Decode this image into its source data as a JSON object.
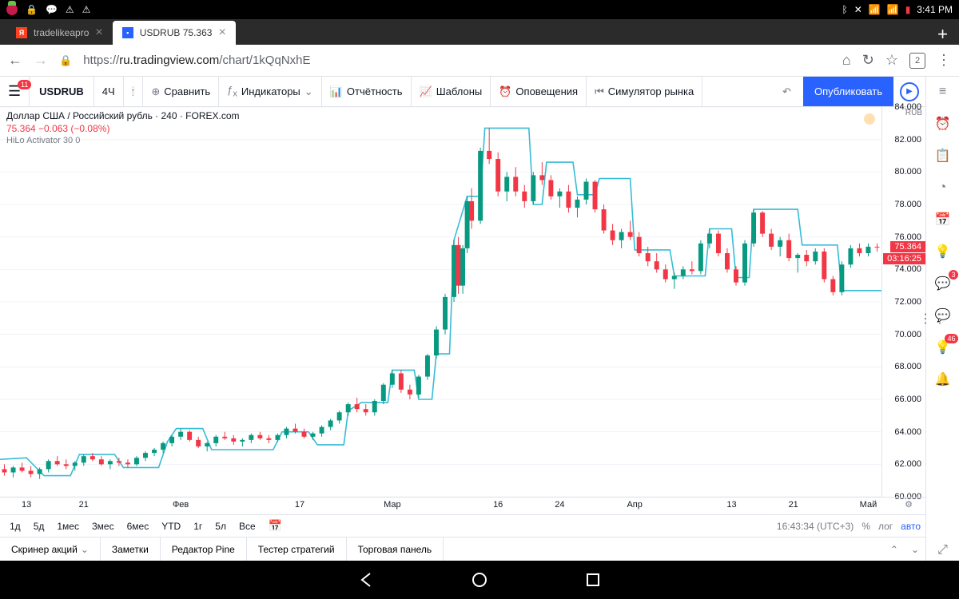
{
  "android": {
    "time": "3:41 PM"
  },
  "tabs": {
    "inactive_title": "tradelikeapro",
    "active_title": "USDRUB 75.363",
    "count": "2"
  },
  "url": {
    "scheme": "https://",
    "host": "ru.tradingview.com",
    "path": "/chart/1kQqNxhE"
  },
  "toolbar": {
    "notif_count": "11",
    "symbol": "USDRUB",
    "interval": "4Ч",
    "compare": "Сравнить",
    "indicators": "Индикаторы",
    "financials": "Отчётность",
    "templates": "Шаблоны",
    "alerts": "Оповещения",
    "replay": "Симулятор рынка",
    "publish": "Опубликовать"
  },
  "chart": {
    "title": "Доллар США / Российский рубль · 240 · FOREX.com",
    "last": "75.364",
    "change": "−0.063 (−0.08%)",
    "indicator_label": "HiLo Activator 30 0",
    "currency": "RUB",
    "price_last_pill": "75.364",
    "countdown_pill": "03:16:25",
    "ylim": [
      60,
      84
    ],
    "yticks": [
      60,
      62,
      64,
      66,
      68,
      70,
      72,
      74,
      76,
      78,
      80,
      82,
      84
    ],
    "ytick_labels": [
      "60.000",
      "62.000",
      "64.000",
      "66.000",
      "68.000",
      "70.000",
      "72.000",
      "74.000",
      "76.000",
      "78.000",
      "80.000",
      "82.000",
      "84.000"
    ],
    "xticks": [
      {
        "x": 0.03,
        "label": "13"
      },
      {
        "x": 0.095,
        "label": "21"
      },
      {
        "x": 0.205,
        "label": "Фев"
      },
      {
        "x": 0.34,
        "label": "17"
      },
      {
        "x": 0.445,
        "label": "Мар"
      },
      {
        "x": 0.565,
        "label": "16"
      },
      {
        "x": 0.635,
        "label": "24"
      },
      {
        "x": 0.72,
        "label": "Апр"
      },
      {
        "x": 0.83,
        "label": "13"
      },
      {
        "x": 0.9,
        "label": "21"
      },
      {
        "x": 0.985,
        "label": "Май"
      }
    ],
    "colors": {
      "hilo": "#37bcd6",
      "up": "#089981",
      "down": "#f23645",
      "grid": "#f0f3fa",
      "text": "#131722"
    },
    "hilo_points": [
      [
        0.0,
        62.3
      ],
      [
        0.03,
        62.4
      ],
      [
        0.05,
        61.3
      ],
      [
        0.08,
        61.3
      ],
      [
        0.09,
        62.6
      ],
      [
        0.13,
        62.6
      ],
      [
        0.14,
        61.8
      ],
      [
        0.18,
        61.8
      ],
      [
        0.19,
        63.4
      ],
      [
        0.2,
        64.2
      ],
      [
        0.23,
        64.2
      ],
      [
        0.24,
        62.9
      ],
      [
        0.31,
        62.9
      ],
      [
        0.32,
        64.0
      ],
      [
        0.35,
        64.0
      ],
      [
        0.36,
        63.2
      ],
      [
        0.39,
        63.2
      ],
      [
        0.395,
        65.3
      ],
      [
        0.41,
        65.8
      ],
      [
        0.44,
        65.8
      ],
      [
        0.445,
        67.8
      ],
      [
        0.47,
        67.8
      ],
      [
        0.475,
        66.0
      ],
      [
        0.49,
        66.0
      ],
      [
        0.495,
        68.8
      ],
      [
        0.51,
        68.8
      ],
      [
        0.515,
        75.8
      ],
      [
        0.53,
        78.5
      ],
      [
        0.545,
        78.5
      ],
      [
        0.55,
        82.7
      ],
      [
        0.6,
        82.7
      ],
      [
        0.605,
        78.0
      ],
      [
        0.615,
        78.0
      ],
      [
        0.62,
        80.6
      ],
      [
        0.65,
        80.6
      ],
      [
        0.655,
        78.6
      ],
      [
        0.675,
        78.6
      ],
      [
        0.68,
        79.6
      ],
      [
        0.715,
        79.6
      ],
      [
        0.72,
        75.2
      ],
      [
        0.76,
        75.2
      ],
      [
        0.765,
        73.6
      ],
      [
        0.8,
        73.6
      ],
      [
        0.805,
        76.5
      ],
      [
        0.83,
        76.5
      ],
      [
        0.835,
        73.5
      ],
      [
        0.85,
        73.5
      ],
      [
        0.855,
        77.7
      ],
      [
        0.905,
        77.7
      ],
      [
        0.91,
        75.5
      ],
      [
        0.95,
        75.5
      ],
      [
        0.955,
        72.7
      ],
      [
        1.0,
        72.7
      ]
    ],
    "candles": [
      {
        "x": 0.005,
        "o": 61.7,
        "h": 62.0,
        "l": 61.3,
        "c": 61.5
      },
      {
        "x": 0.015,
        "o": 61.5,
        "h": 61.9,
        "l": 61.2,
        "c": 61.8
      },
      {
        "x": 0.025,
        "o": 61.8,
        "h": 62.1,
        "l": 61.5,
        "c": 61.6
      },
      {
        "x": 0.035,
        "o": 61.6,
        "h": 61.9,
        "l": 61.2,
        "c": 61.4
      },
      {
        "x": 0.045,
        "o": 61.4,
        "h": 61.8,
        "l": 61.1,
        "c": 61.7
      },
      {
        "x": 0.055,
        "o": 61.7,
        "h": 62.3,
        "l": 61.5,
        "c": 62.2
      },
      {
        "x": 0.065,
        "o": 62.2,
        "h": 62.5,
        "l": 61.9,
        "c": 62.0
      },
      {
        "x": 0.075,
        "o": 62.0,
        "h": 62.3,
        "l": 61.7,
        "c": 61.9
      },
      {
        "x": 0.085,
        "o": 61.9,
        "h": 62.2,
        "l": 61.6,
        "c": 62.1
      },
      {
        "x": 0.095,
        "o": 62.1,
        "h": 62.6,
        "l": 61.9,
        "c": 62.5
      },
      {
        "x": 0.105,
        "o": 62.5,
        "h": 62.7,
        "l": 62.2,
        "c": 62.3
      },
      {
        "x": 0.115,
        "o": 62.3,
        "h": 62.5,
        "l": 61.9,
        "c": 62.0
      },
      {
        "x": 0.125,
        "o": 62.0,
        "h": 62.3,
        "l": 61.7,
        "c": 62.2
      },
      {
        "x": 0.135,
        "o": 62.2,
        "h": 62.4,
        "l": 61.9,
        "c": 62.1
      },
      {
        "x": 0.145,
        "o": 62.1,
        "h": 62.3,
        "l": 61.8,
        "c": 62.0
      },
      {
        "x": 0.155,
        "o": 62.0,
        "h": 62.5,
        "l": 61.9,
        "c": 62.4
      },
      {
        "x": 0.165,
        "o": 62.4,
        "h": 62.8,
        "l": 62.2,
        "c": 62.7
      },
      {
        "x": 0.175,
        "o": 62.7,
        "h": 63.0,
        "l": 62.5,
        "c": 62.9
      },
      {
        "x": 0.185,
        "o": 62.9,
        "h": 63.4,
        "l": 62.7,
        "c": 63.3
      },
      {
        "x": 0.195,
        "o": 63.3,
        "h": 63.8,
        "l": 63.1,
        "c": 63.7
      },
      {
        "x": 0.205,
        "o": 63.7,
        "h": 64.2,
        "l": 63.5,
        "c": 64.0
      },
      {
        "x": 0.215,
        "o": 64.0,
        "h": 64.1,
        "l": 63.4,
        "c": 63.5
      },
      {
        "x": 0.225,
        "o": 63.5,
        "h": 63.7,
        "l": 63.0,
        "c": 63.1
      },
      {
        "x": 0.235,
        "o": 63.1,
        "h": 63.4,
        "l": 62.8,
        "c": 63.3
      },
      {
        "x": 0.245,
        "o": 63.3,
        "h": 63.8,
        "l": 63.1,
        "c": 63.7
      },
      {
        "x": 0.255,
        "o": 63.7,
        "h": 64.0,
        "l": 63.5,
        "c": 63.6
      },
      {
        "x": 0.265,
        "o": 63.6,
        "h": 63.8,
        "l": 63.2,
        "c": 63.4
      },
      {
        "x": 0.275,
        "o": 63.4,
        "h": 63.6,
        "l": 63.1,
        "c": 63.5
      },
      {
        "x": 0.285,
        "o": 63.5,
        "h": 63.9,
        "l": 63.3,
        "c": 63.8
      },
      {
        "x": 0.295,
        "o": 63.8,
        "h": 64.0,
        "l": 63.5,
        "c": 63.6
      },
      {
        "x": 0.305,
        "o": 63.6,
        "h": 63.8,
        "l": 63.3,
        "c": 63.5
      },
      {
        "x": 0.315,
        "o": 63.5,
        "h": 63.9,
        "l": 63.4,
        "c": 63.8
      },
      {
        "x": 0.325,
        "o": 63.8,
        "h": 64.3,
        "l": 63.6,
        "c": 64.2
      },
      {
        "x": 0.335,
        "o": 64.2,
        "h": 64.5,
        "l": 63.9,
        "c": 64.0
      },
      {
        "x": 0.345,
        "o": 64.0,
        "h": 64.2,
        "l": 63.6,
        "c": 63.7
      },
      {
        "x": 0.355,
        "o": 63.7,
        "h": 64.0,
        "l": 63.5,
        "c": 63.9
      },
      {
        "x": 0.365,
        "o": 63.9,
        "h": 64.4,
        "l": 63.7,
        "c": 64.3
      },
      {
        "x": 0.375,
        "o": 64.3,
        "h": 64.8,
        "l": 64.1,
        "c": 64.7
      },
      {
        "x": 0.385,
        "o": 64.7,
        "h": 65.3,
        "l": 64.5,
        "c": 65.2
      },
      {
        "x": 0.395,
        "o": 65.2,
        "h": 65.8,
        "l": 65.0,
        "c": 65.7
      },
      {
        "x": 0.405,
        "o": 65.7,
        "h": 66.1,
        "l": 65.2,
        "c": 65.4
      },
      {
        "x": 0.415,
        "o": 65.4,
        "h": 65.7,
        "l": 65.0,
        "c": 65.2
      },
      {
        "x": 0.425,
        "o": 65.2,
        "h": 66.0,
        "l": 65.0,
        "c": 65.9
      },
      {
        "x": 0.435,
        "o": 65.9,
        "h": 67.0,
        "l": 65.7,
        "c": 66.9
      },
      {
        "x": 0.445,
        "o": 66.9,
        "h": 67.8,
        "l": 66.7,
        "c": 67.6
      },
      {
        "x": 0.455,
        "o": 67.6,
        "h": 67.8,
        "l": 66.4,
        "c": 66.6
      },
      {
        "x": 0.465,
        "o": 66.6,
        "h": 66.9,
        "l": 66.0,
        "c": 66.3
      },
      {
        "x": 0.475,
        "o": 66.3,
        "h": 67.5,
        "l": 66.1,
        "c": 67.4
      },
      {
        "x": 0.485,
        "o": 67.4,
        "h": 68.8,
        "l": 67.2,
        "c": 68.7
      },
      {
        "x": 0.495,
        "o": 68.7,
        "h": 70.5,
        "l": 68.5,
        "c": 70.3
      },
      {
        "x": 0.505,
        "o": 70.3,
        "h": 72.5,
        "l": 70.0,
        "c": 72.3
      },
      {
        "x": 0.515,
        "o": 72.3,
        "h": 75.8,
        "l": 72.0,
        "c": 75.5
      },
      {
        "x": 0.52,
        "o": 75.5,
        "h": 76.0,
        "l": 72.5,
        "c": 73.0
      },
      {
        "x": 0.525,
        "o": 73.0,
        "h": 75.5,
        "l": 72.5,
        "c": 75.3
      },
      {
        "x": 0.53,
        "o": 75.3,
        "h": 78.5,
        "l": 75.0,
        "c": 78.2
      },
      {
        "x": 0.535,
        "o": 78.2,
        "h": 79.0,
        "l": 76.5,
        "c": 77.0
      },
      {
        "x": 0.545,
        "o": 77.0,
        "h": 81.5,
        "l": 76.8,
        "c": 81.3
      },
      {
        "x": 0.555,
        "o": 81.3,
        "h": 82.7,
        "l": 80.5,
        "c": 80.8
      },
      {
        "x": 0.565,
        "o": 80.8,
        "h": 81.2,
        "l": 78.5,
        "c": 78.8
      },
      {
        "x": 0.575,
        "o": 78.8,
        "h": 80.0,
        "l": 78.2,
        "c": 79.7
      },
      {
        "x": 0.585,
        "o": 79.7,
        "h": 80.3,
        "l": 78.5,
        "c": 78.8
      },
      {
        "x": 0.595,
        "o": 78.8,
        "h": 79.2,
        "l": 77.8,
        "c": 78.2
      },
      {
        "x": 0.605,
        "o": 78.2,
        "h": 80.0,
        "l": 78.0,
        "c": 79.8
      },
      {
        "x": 0.615,
        "o": 79.8,
        "h": 80.6,
        "l": 79.2,
        "c": 79.5
      },
      {
        "x": 0.625,
        "o": 79.5,
        "h": 79.8,
        "l": 78.3,
        "c": 78.5
      },
      {
        "x": 0.635,
        "o": 78.5,
        "h": 79.0,
        "l": 77.8,
        "c": 78.8
      },
      {
        "x": 0.645,
        "o": 78.8,
        "h": 79.2,
        "l": 77.5,
        "c": 77.8
      },
      {
        "x": 0.655,
        "o": 77.8,
        "h": 78.5,
        "l": 77.2,
        "c": 78.3
      },
      {
        "x": 0.665,
        "o": 78.3,
        "h": 79.6,
        "l": 78.0,
        "c": 79.4
      },
      {
        "x": 0.675,
        "o": 79.4,
        "h": 79.5,
        "l": 77.5,
        "c": 77.7
      },
      {
        "x": 0.685,
        "o": 77.7,
        "h": 78.0,
        "l": 76.2,
        "c": 76.4
      },
      {
        "x": 0.695,
        "o": 76.4,
        "h": 76.8,
        "l": 75.5,
        "c": 75.8
      },
      {
        "x": 0.705,
        "o": 75.8,
        "h": 76.5,
        "l": 75.3,
        "c": 76.3
      },
      {
        "x": 0.715,
        "o": 76.3,
        "h": 77.0,
        "l": 75.8,
        "c": 76.0
      },
      {
        "x": 0.725,
        "o": 76.0,
        "h": 76.3,
        "l": 74.8,
        "c": 75.0
      },
      {
        "x": 0.735,
        "o": 75.0,
        "h": 75.4,
        "l": 74.2,
        "c": 74.5
      },
      {
        "x": 0.745,
        "o": 74.5,
        "h": 75.0,
        "l": 73.8,
        "c": 74.0
      },
      {
        "x": 0.755,
        "o": 74.0,
        "h": 74.3,
        "l": 73.2,
        "c": 73.4
      },
      {
        "x": 0.765,
        "o": 73.4,
        "h": 73.8,
        "l": 72.8,
        "c": 73.6
      },
      {
        "x": 0.775,
        "o": 73.6,
        "h": 74.2,
        "l": 73.4,
        "c": 74.0
      },
      {
        "x": 0.785,
        "o": 74.0,
        "h": 74.5,
        "l": 73.7,
        "c": 73.9
      },
      {
        "x": 0.795,
        "o": 73.9,
        "h": 75.8,
        "l": 73.7,
        "c": 75.6
      },
      {
        "x": 0.805,
        "o": 75.6,
        "h": 76.5,
        "l": 75.3,
        "c": 76.2
      },
      {
        "x": 0.815,
        "o": 76.2,
        "h": 76.4,
        "l": 74.8,
        "c": 75.0
      },
      {
        "x": 0.825,
        "o": 75.0,
        "h": 75.3,
        "l": 73.8,
        "c": 74.0
      },
      {
        "x": 0.835,
        "o": 74.0,
        "h": 74.2,
        "l": 73.0,
        "c": 73.2
      },
      {
        "x": 0.845,
        "o": 73.2,
        "h": 75.8,
        "l": 73.0,
        "c": 75.6
      },
      {
        "x": 0.855,
        "o": 75.6,
        "h": 77.7,
        "l": 75.4,
        "c": 77.5
      },
      {
        "x": 0.865,
        "o": 77.5,
        "h": 77.6,
        "l": 76.0,
        "c": 76.2
      },
      {
        "x": 0.875,
        "o": 76.2,
        "h": 76.5,
        "l": 75.2,
        "c": 75.4
      },
      {
        "x": 0.885,
        "o": 75.4,
        "h": 76.0,
        "l": 74.8,
        "c": 75.8
      },
      {
        "x": 0.895,
        "o": 75.8,
        "h": 76.2,
        "l": 74.5,
        "c": 74.7
      },
      {
        "x": 0.905,
        "o": 74.7,
        "h": 75.0,
        "l": 73.8,
        "c": 74.9
      },
      {
        "x": 0.915,
        "o": 74.9,
        "h": 75.2,
        "l": 74.2,
        "c": 74.5
      },
      {
        "x": 0.925,
        "o": 74.5,
        "h": 75.3,
        "l": 74.3,
        "c": 75.1
      },
      {
        "x": 0.935,
        "o": 75.1,
        "h": 75.3,
        "l": 73.2,
        "c": 73.4
      },
      {
        "x": 0.945,
        "o": 73.4,
        "h": 73.6,
        "l": 72.4,
        "c": 72.6
      },
      {
        "x": 0.955,
        "o": 72.6,
        "h": 74.5,
        "l": 72.4,
        "c": 74.3
      },
      {
        "x": 0.965,
        "o": 74.3,
        "h": 75.5,
        "l": 74.1,
        "c": 75.3
      },
      {
        "x": 0.975,
        "o": 75.3,
        "h": 75.6,
        "l": 74.8,
        "c": 75.0
      },
      {
        "x": 0.985,
        "o": 75.0,
        "h": 75.6,
        "l": 74.8,
        "c": 75.4
      },
      {
        "x": 0.995,
        "o": 75.4,
        "h": 75.6,
        "l": 75.1,
        "c": 75.36
      }
    ]
  },
  "ranges": [
    "1д",
    "5д",
    "1мес",
    "3мес",
    "6мес",
    "YTD",
    "1г",
    "5л",
    "Все"
  ],
  "range_footer": {
    "clock": "16:43:34 (UTC+3)",
    "pct": "%",
    "log": "лог",
    "auto": "авто"
  },
  "bottom_tabs": [
    "Скринер акций",
    "Заметки",
    "Редактор Pine",
    "Тестер стратегий",
    "Торговая панель"
  ],
  "rail_badges": {
    "chat": "3",
    "ideas": "46"
  }
}
